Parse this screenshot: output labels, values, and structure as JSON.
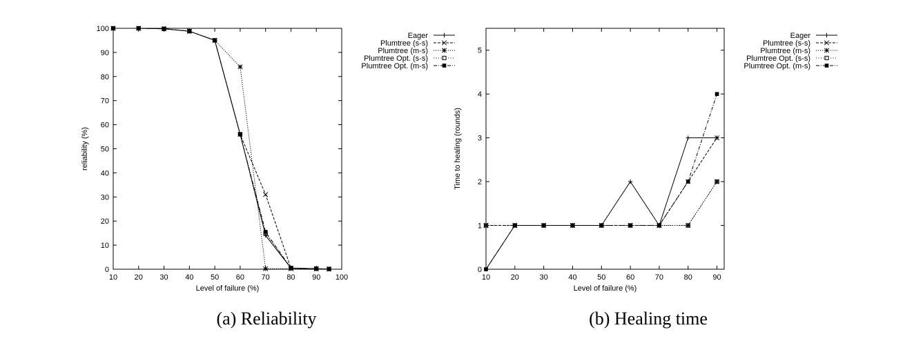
{
  "chart_data": [
    {
      "type": "line",
      "caption": "(a)  Reliability",
      "xlabel": "Level of failure (%)",
      "ylabel": "reliability (%)",
      "xlim": [
        10,
        100
      ],
      "ylim": [
        0,
        100
      ],
      "xticks": [
        10,
        20,
        30,
        40,
        50,
        60,
        70,
        80,
        90,
        100
      ],
      "yticks": [
        0,
        10,
        20,
        30,
        40,
        50,
        60,
        70,
        80,
        90,
        100
      ],
      "grid": false,
      "legend_position": "outside-top-right",
      "series": [
        {
          "name": "Eager",
          "marker": "plus",
          "dash": "solid",
          "x": [
            10,
            20,
            30,
            40,
            50,
            60,
            70,
            80,
            90,
            95
          ],
          "y": [
            100,
            100,
            99.8,
            98.8,
            95,
            56,
            14,
            0.5,
            0.2,
            0.1
          ]
        },
        {
          "name": "Plumtree (s-s)",
          "marker": "cross",
          "dash": "dashed",
          "x": [
            10,
            20,
            30,
            40,
            50,
            60,
            70,
            80,
            90,
            95
          ],
          "y": [
            100,
            100,
            99.8,
            98.8,
            95,
            56,
            31,
            0.5,
            0.2,
            0.1
          ]
        },
        {
          "name": "Plumtree (m-s)",
          "marker": "star",
          "dash": "dotted",
          "x": [
            10,
            20,
            30,
            40,
            50,
            60,
            70,
            80,
            90,
            95
          ],
          "y": [
            100,
            100,
            99.8,
            98.8,
            95,
            84,
            0.2,
            0.2,
            0.2,
            0.1
          ]
        },
        {
          "name": "Plumtree Opt. (s-s)",
          "marker": "square-open",
          "dash": "dotted-fine",
          "x": [
            10,
            20,
            30,
            40,
            50,
            60,
            70,
            80,
            90,
            95
          ],
          "y": [
            100,
            100,
            99.8,
            98.8,
            95,
            56,
            15,
            0.5,
            0.2,
            0.1
          ]
        },
        {
          "name": "Plumtree Opt. (m-s)",
          "marker": "square-filled",
          "dash": "dashdot",
          "x": [
            10,
            20,
            30,
            40,
            50,
            60,
            70,
            80,
            90,
            95
          ],
          "y": [
            100,
            100,
            99.8,
            98.8,
            95,
            56,
            15.5,
            0.5,
            0.2,
            0.1
          ]
        }
      ]
    },
    {
      "type": "line",
      "caption": "(b)  Healing time",
      "xlabel": "Level of failure (%)",
      "ylabel": "Time to healing (rounds)",
      "xlim": [
        10,
        92.5
      ],
      "ylim": [
        0,
        5.5
      ],
      "xticks": [
        10,
        20,
        30,
        40,
        50,
        60,
        70,
        80,
        90
      ],
      "yticks": [
        0,
        1,
        2,
        3,
        4,
        5
      ],
      "grid": false,
      "legend_position": "outside-top-right",
      "series": [
        {
          "name": "Eager",
          "marker": "plus",
          "dash": "solid",
          "x": [
            10,
            20,
            30,
            40,
            50,
            60,
            70,
            80,
            90
          ],
          "y": [
            0,
            1,
            1,
            1,
            1,
            2,
            1,
            3,
            3
          ]
        },
        {
          "name": "Plumtree (s-s)",
          "marker": "cross",
          "dash": "dashed",
          "x": [
            10,
            20,
            30,
            40,
            50,
            60,
            70,
            80,
            90
          ],
          "y": [
            1,
            1,
            1,
            1,
            1,
            1,
            1,
            2,
            3
          ]
        },
        {
          "name": "Plumtree (m-s)",
          "marker": "star",
          "dash": "dotted",
          "x": [
            10,
            20,
            30,
            40,
            50,
            60,
            70,
            80,
            90
          ],
          "y": [
            1,
            1,
            1,
            1,
            1,
            1,
            1,
            1,
            2
          ]
        },
        {
          "name": "Plumtree Opt. (s-s)",
          "marker": "square-open",
          "dash": "dotted-fine",
          "x": [
            10,
            20,
            30,
            40,
            50,
            60,
            70,
            80,
            90
          ],
          "y": [
            1,
            1,
            1,
            1,
            1,
            1,
            1,
            1,
            2
          ]
        },
        {
          "name": "Plumtree Opt. (m-s)",
          "marker": "square-filled",
          "dash": "dashdot",
          "x": [
            10,
            20,
            30,
            40,
            50,
            60,
            70,
            80,
            90
          ],
          "y": [
            0,
            1,
            1,
            1,
            1,
            1,
            1,
            2,
            4
          ]
        }
      ]
    }
  ]
}
